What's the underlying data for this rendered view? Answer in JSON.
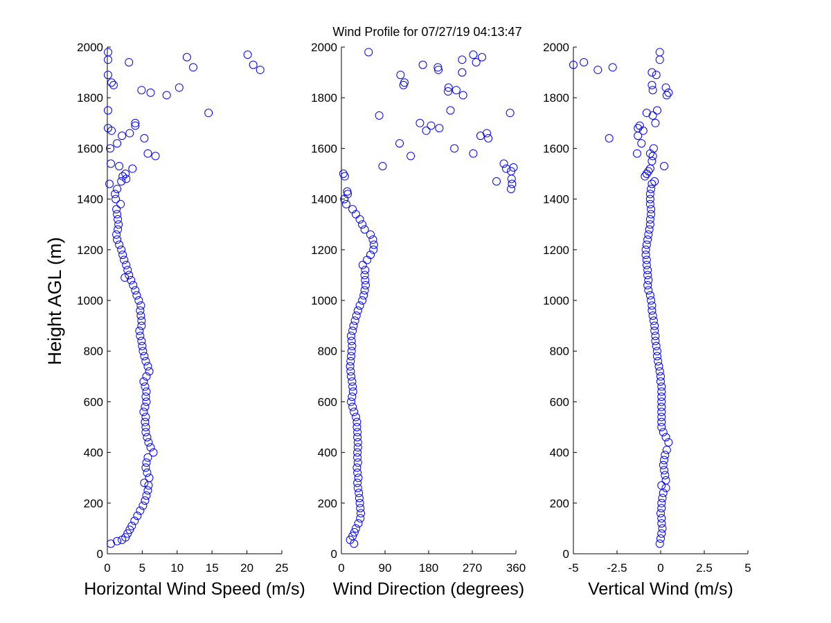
{
  "figure": {
    "title": "Wind Profile for  07/27/19 04:13:47",
    "ylabel": "Height AGL (m)"
  },
  "chart_data": [
    {
      "type": "scatter",
      "xlabel": "Horizontal Wind Speed (m/s)",
      "ylabel": "Height AGL (m)",
      "xlim": [
        0,
        25
      ],
      "ylim": [
        0,
        2000
      ],
      "xticks": [
        0,
        5,
        10,
        15,
        20,
        25
      ],
      "xticklabels": [
        "0",
        "5",
        "10",
        "15",
        "20",
        "25"
      ],
      "yticks": [
        0,
        200,
        400,
        600,
        800,
        1000,
        1200,
        1400,
        1600,
        1800,
        2000
      ],
      "marker_color": "#0000ff",
      "points": [
        [
          0.5,
          40
        ],
        [
          1.4,
          50
        ],
        [
          2.1,
          55
        ],
        [
          2.6,
          65
        ],
        [
          2.9,
          80
        ],
        [
          3.2,
          95
        ],
        [
          3.5,
          110
        ],
        [
          3.9,
          130
        ],
        [
          4.3,
          150
        ],
        [
          4.7,
          170
        ],
        [
          5.1,
          190
        ],
        [
          5.4,
          210
        ],
        [
          5.6,
          230
        ],
        [
          5.8,
          250
        ],
        [
          5.9,
          270
        ],
        [
          5.3,
          280
        ],
        [
          6.0,
          300
        ],
        [
          5.7,
          320
        ],
        [
          5.5,
          340
        ],
        [
          5.6,
          360
        ],
        [
          5.8,
          380
        ],
        [
          6.6,
          400
        ],
        [
          6.2,
          420
        ],
        [
          5.9,
          440
        ],
        [
          5.7,
          460
        ],
        [
          5.5,
          480
        ],
        [
          5.5,
          500
        ],
        [
          5.4,
          520
        ],
        [
          5.5,
          540
        ],
        [
          5.2,
          560
        ],
        [
          5.4,
          580
        ],
        [
          5.6,
          600
        ],
        [
          5.5,
          620
        ],
        [
          5.6,
          640
        ],
        [
          5.4,
          660
        ],
        [
          5.2,
          680
        ],
        [
          5.6,
          700
        ],
        [
          6.0,
          720
        ],
        [
          5.8,
          740
        ],
        [
          5.5,
          760
        ],
        [
          5.3,
          780
        ],
        [
          5.1,
          800
        ],
        [
          5.0,
          820
        ],
        [
          4.9,
          840
        ],
        [
          4.7,
          860
        ],
        [
          4.6,
          880
        ],
        [
          4.9,
          900
        ],
        [
          4.9,
          920
        ],
        [
          4.8,
          940
        ],
        [
          4.7,
          960
        ],
        [
          4.8,
          980
        ],
        [
          4.5,
          1000
        ],
        [
          4.2,
          1020
        ],
        [
          4.0,
          1040
        ],
        [
          3.7,
          1060
        ],
        [
          3.4,
          1080
        ],
        [
          2.5,
          1090
        ],
        [
          3.1,
          1100
        ],
        [
          2.9,
          1120
        ],
        [
          2.7,
          1140
        ],
        [
          2.4,
          1160
        ],
        [
          2.2,
          1180
        ],
        [
          2.0,
          1200
        ],
        [
          1.7,
          1220
        ],
        [
          1.4,
          1240
        ],
        [
          1.3,
          1260
        ],
        [
          1.5,
          1280
        ],
        [
          1.6,
          1300
        ],
        [
          1.5,
          1320
        ],
        [
          1.4,
          1340
        ],
        [
          1.3,
          1360
        ],
        [
          1.9,
          1380
        ],
        [
          1.2,
          1400
        ],
        [
          1.1,
          1420
        ],
        [
          1.4,
          1440
        ],
        [
          0.3,
          1460
        ],
        [
          2.0,
          1470
        ],
        [
          2.7,
          1480
        ],
        [
          2.2,
          1490
        ],
        [
          2.6,
          1500
        ],
        [
          3.6,
          1520
        ],
        [
          1.7,
          1530
        ],
        [
          0.5,
          1540
        ],
        [
          6.9,
          1570
        ],
        [
          5.8,
          1580
        ],
        [
          0.4,
          1600
        ],
        [
          1.4,
          1620
        ],
        [
          5.3,
          1640
        ],
        [
          2.1,
          1650
        ],
        [
          3.2,
          1660
        ],
        [
          0.6,
          1670
        ],
        [
          0.1,
          1680
        ],
        [
          4.0,
          1690
        ],
        [
          4.0,
          1700
        ],
        [
          14.5,
          1740
        ],
        [
          0.1,
          1750
        ],
        [
          8.5,
          1810
        ],
        [
          6.2,
          1820
        ],
        [
          4.9,
          1830
        ],
        [
          10.3,
          1840
        ],
        [
          0.9,
          1850
        ],
        [
          0.6,
          1860
        ],
        [
          0.1,
          1890
        ],
        [
          21.9,
          1910
        ],
        [
          12.3,
          1920
        ],
        [
          20.9,
          1930
        ],
        [
          3.1,
          1940
        ],
        [
          0.1,
          1950
        ],
        [
          11.4,
          1960
        ],
        [
          20.1,
          1970
        ],
        [
          0.1,
          1980
        ]
      ]
    },
    {
      "type": "scatter",
      "xlabel": "Wind Direction (degrees)",
      "ylabel": "",
      "xlim": [
        0,
        360
      ],
      "ylim": [
        0,
        2000
      ],
      "xticks": [
        0,
        90,
        180,
        270,
        360
      ],
      "xticklabels": [
        "0",
        "90",
        "180",
        "270",
        "360"
      ],
      "yticks": [
        0,
        200,
        400,
        600,
        800,
        1000,
        1200,
        1400,
        1600,
        1800,
        2000
      ],
      "marker_color": "#0000ff",
      "points": [
        [
          26,
          40
        ],
        [
          18,
          55
        ],
        [
          23,
          70
        ],
        [
          27,
          85
        ],
        [
          30,
          100
        ],
        [
          35,
          120
        ],
        [
          39,
          140
        ],
        [
          40,
          160
        ],
        [
          39,
          180
        ],
        [
          38,
          200
        ],
        [
          37,
          220
        ],
        [
          36,
          240
        ],
        [
          34,
          260
        ],
        [
          33,
          280
        ],
        [
          35,
          300
        ],
        [
          33,
          320
        ],
        [
          32,
          340
        ],
        [
          34,
          360
        ],
        [
          33,
          380
        ],
        [
          33,
          400
        ],
        [
          34,
          420
        ],
        [
          34,
          440
        ],
        [
          33,
          460
        ],
        [
          33,
          480
        ],
        [
          32,
          500
        ],
        [
          32,
          520
        ],
        [
          30,
          540
        ],
        [
          26,
          560
        ],
        [
          23,
          580
        ],
        [
          20,
          600
        ],
        [
          22,
          620
        ],
        [
          24,
          640
        ],
        [
          23,
          660
        ],
        [
          22,
          680
        ],
        [
          20,
          700
        ],
        [
          19,
          720
        ],
        [
          18,
          740
        ],
        [
          19,
          760
        ],
        [
          20,
          780
        ],
        [
          21,
          800
        ],
        [
          22,
          820
        ],
        [
          21,
          840
        ],
        [
          20,
          860
        ],
        [
          23,
          880
        ],
        [
          25,
          900
        ],
        [
          28,
          920
        ],
        [
          31,
          940
        ],
        [
          34,
          960
        ],
        [
          38,
          980
        ],
        [
          43,
          1000
        ],
        [
          46,
          1020
        ],
        [
          48,
          1040
        ],
        [
          50,
          1060
        ],
        [
          49,
          1080
        ],
        [
          48,
          1100
        ],
        [
          49,
          1120
        ],
        [
          44,
          1140
        ],
        [
          53,
          1160
        ],
        [
          60,
          1180
        ],
        [
          66,
          1200
        ],
        [
          67,
          1220
        ],
        [
          65,
          1240
        ],
        [
          60,
          1260
        ],
        [
          48,
          1280
        ],
        [
          43,
          1300
        ],
        [
          38,
          1320
        ],
        [
          30,
          1340
        ],
        [
          23,
          1360
        ],
        [
          10,
          1380
        ],
        [
          6,
          1400
        ],
        [
          13,
          1420
        ],
        [
          12,
          1430
        ],
        [
          350,
          1440
        ],
        [
          352,
          1460
        ],
        [
          320,
          1470
        ],
        [
          351,
          1480
        ],
        [
          7,
          1490
        ],
        [
          4,
          1500
        ],
        [
          350,
          1510
        ],
        [
          340,
          1520
        ],
        [
          355,
          1525
        ],
        [
          85,
          1530
        ],
        [
          335,
          1540
        ],
        [
          143,
          1570
        ],
        [
          272,
          1580
        ],
        [
          233,
          1600
        ],
        [
          120,
          1620
        ],
        [
          303,
          1640
        ],
        [
          287,
          1650
        ],
        [
          300,
          1660
        ],
        [
          175,
          1670
        ],
        [
          202,
          1680
        ],
        [
          185,
          1690
        ],
        [
          162,
          1700
        ],
        [
          78,
          1730
        ],
        [
          348,
          1740
        ],
        [
          225,
          1750
        ],
        [
          251,
          1810
        ],
        [
          220,
          1825
        ],
        [
          237,
          1830
        ],
        [
          221,
          1840
        ],
        [
          128,
          1850
        ],
        [
          130,
          1860
        ],
        [
          122,
          1890
        ],
        [
          249,
          1900
        ],
        [
          200,
          1910
        ],
        [
          199,
          1920
        ],
        [
          168,
          1930
        ],
        [
          278,
          1940
        ],
        [
          249,
          1950
        ],
        [
          290,
          1960
        ],
        [
          272,
          1970
        ],
        [
          56,
          1980
        ]
      ]
    },
    {
      "type": "scatter",
      "xlabel": "Vertical Wind (m/s)",
      "ylabel": "",
      "xlim": [
        -5,
        5
      ],
      "ylim": [
        0,
        2000
      ],
      "xticks": [
        -5,
        -2.5,
        0,
        2.5,
        5
      ],
      "xticklabels": [
        "-5",
        "-2.5",
        "0",
        "2.5",
        "5"
      ],
      "yticks": [
        0,
        200,
        400,
        600,
        800,
        1000,
        1200,
        1400,
        1600,
        1800,
        2000
      ],
      "marker_color": "#0000ff",
      "points": [
        [
          -0.05,
          40
        ],
        [
          0.0,
          60
        ],
        [
          0.05,
          80
        ],
        [
          0.1,
          100
        ],
        [
          0.05,
          120
        ],
        [
          0.05,
          140
        ],
        [
          0.0,
          160
        ],
        [
          0.05,
          180
        ],
        [
          0.05,
          200
        ],
        [
          0.1,
          220
        ],
        [
          0.15,
          240
        ],
        [
          0.3,
          260
        ],
        [
          0.05,
          270
        ],
        [
          0.3,
          290
        ],
        [
          0.25,
          310
        ],
        [
          0.2,
          330
        ],
        [
          0.15,
          350
        ],
        [
          0.2,
          370
        ],
        [
          0.25,
          390
        ],
        [
          0.35,
          410
        ],
        [
          0.45,
          440
        ],
        [
          0.3,
          460
        ],
        [
          0.15,
          480
        ],
        [
          0.05,
          500
        ],
        [
          0.05,
          520
        ],
        [
          0.05,
          540
        ],
        [
          0.05,
          560
        ],
        [
          0.05,
          580
        ],
        [
          0.05,
          600
        ],
        [
          0.05,
          620
        ],
        [
          0.05,
          640
        ],
        [
          0.05,
          660
        ],
        [
          0.0,
          680
        ],
        [
          0.0,
          700
        ],
        [
          -0.05,
          720
        ],
        [
          -0.1,
          740
        ],
        [
          -0.15,
          760
        ],
        [
          -0.2,
          780
        ],
        [
          -0.2,
          800
        ],
        [
          -0.25,
          820
        ],
        [
          -0.3,
          840
        ],
        [
          -0.3,
          860
        ],
        [
          -0.35,
          880
        ],
        [
          -0.35,
          900
        ],
        [
          -0.4,
          920
        ],
        [
          -0.45,
          940
        ],
        [
          -0.5,
          960
        ],
        [
          -0.5,
          980
        ],
        [
          -0.55,
          1000
        ],
        [
          -0.6,
          1020
        ],
        [
          -0.7,
          1040
        ],
        [
          -0.75,
          1060
        ],
        [
          -0.7,
          1080
        ],
        [
          -0.75,
          1100
        ],
        [
          -0.75,
          1120
        ],
        [
          -0.8,
          1140
        ],
        [
          -0.8,
          1160
        ],
        [
          -0.85,
          1180
        ],
        [
          -0.85,
          1200
        ],
        [
          -0.8,
          1220
        ],
        [
          -0.75,
          1240
        ],
        [
          -0.7,
          1260
        ],
        [
          -0.65,
          1280
        ],
        [
          -0.6,
          1300
        ],
        [
          -0.6,
          1320
        ],
        [
          -0.55,
          1340
        ],
        [
          -0.55,
          1360
        ],
        [
          -0.6,
          1380
        ],
        [
          -0.6,
          1400
        ],
        [
          -0.6,
          1420
        ],
        [
          -0.55,
          1440
        ],
        [
          -0.5,
          1460
        ],
        [
          -0.35,
          1470
        ],
        [
          -0.9,
          1490
        ],
        [
          -0.8,
          1500
        ],
        [
          -0.7,
          1510
        ],
        [
          -0.6,
          1520
        ],
        [
          0.2,
          1530
        ],
        [
          -0.5,
          1550
        ],
        [
          -0.45,
          1570
        ],
        [
          -0.6,
          1580
        ],
        [
          -1.35,
          1580
        ],
        [
          -0.4,
          1600
        ],
        [
          -1.1,
          1620
        ],
        [
          -2.95,
          1640
        ],
        [
          -1.3,
          1650
        ],
        [
          -1.0,
          1670
        ],
        [
          -1.3,
          1680
        ],
        [
          -1.2,
          1690
        ],
        [
          -0.3,
          1700
        ],
        [
          -0.45,
          1730
        ],
        [
          -0.8,
          1740
        ],
        [
          -0.2,
          1750
        ],
        [
          0.35,
          1810
        ],
        [
          0.45,
          1820
        ],
        [
          0.3,
          1840
        ],
        [
          -0.45,
          1830
        ],
        [
          -0.5,
          1850
        ],
        [
          -0.25,
          1890
        ],
        [
          -0.5,
          1900
        ],
        [
          -3.6,
          1910
        ],
        [
          -2.75,
          1920
        ],
        [
          -5.0,
          1930
        ],
        [
          -4.4,
          1940
        ],
        [
          -0.05,
          1950
        ],
        [
          -0.05,
          1980
        ]
      ]
    }
  ]
}
